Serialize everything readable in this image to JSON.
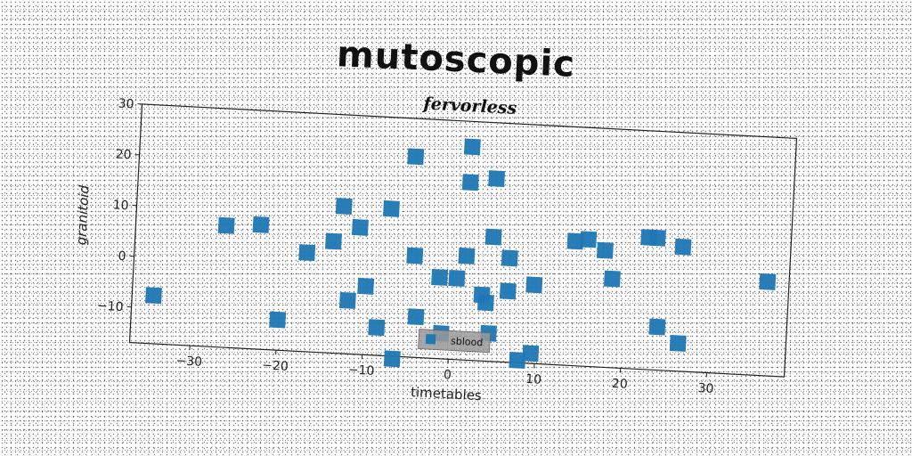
{
  "figure": {
    "suptitle": "mutoscopic"
  },
  "chart_data": {
    "type": "scatter",
    "title": "fervorless",
    "xlabel": "timetables",
    "ylabel": "granitoid",
    "xlim": [
      -37,
      39
    ],
    "ylim": [
      -17,
      30
    ],
    "xticks": [
      -30,
      -20,
      -10,
      0,
      10,
      20,
      30
    ],
    "yticks": [
      -10,
      0,
      10,
      20,
      30
    ],
    "grid": false,
    "legend_position": "lower center",
    "marker": "square",
    "series": [
      {
        "name": "sblood",
        "color": "#1f77b4",
        "points": [
          [
            -34.5,
            -7.5
          ],
          [
            -26.5,
            7.0
          ],
          [
            -22.5,
            7.5
          ],
          [
            -20.0,
            -11.0
          ],
          [
            -17.0,
            2.5
          ],
          [
            -14.0,
            5.0
          ],
          [
            -13.0,
            12.0
          ],
          [
            -12.0,
            -6.5
          ],
          [
            -11.0,
            8.0
          ],
          [
            -10.0,
            -3.5
          ],
          [
            -8.5,
            -11.5
          ],
          [
            -7.5,
            12.0
          ],
          [
            -6.5,
            -17.5
          ],
          [
            -5.0,
            22.5
          ],
          [
            -4.5,
            3.0
          ],
          [
            -4.0,
            -9.0
          ],
          [
            -1.5,
            -1.0
          ],
          [
            -1.0,
            -12.0
          ],
          [
            0.5,
            -1.0
          ],
          [
            1.5,
            25.0
          ],
          [
            1.5,
            3.5
          ],
          [
            1.5,
            18.0
          ],
          [
            3.5,
            -4.0
          ],
          [
            4.0,
            -5.5
          ],
          [
            4.5,
            19.0
          ],
          [
            4.5,
            7.5
          ],
          [
            4.5,
            -11.5
          ],
          [
            6.5,
            3.5
          ],
          [
            6.5,
            -3.0
          ],
          [
            8.0,
            -16.5
          ],
          [
            9.5,
            -15.0
          ],
          [
            9.5,
            -1.5
          ],
          [
            14.0,
            7.5
          ],
          [
            15.5,
            8.0
          ],
          [
            17.5,
            6.0
          ],
          [
            18.5,
            0.5
          ],
          [
            22.5,
            9.0
          ],
          [
            23.5,
            9.0
          ],
          [
            24.0,
            -8.5
          ],
          [
            26.5,
            7.5
          ],
          [
            26.5,
            -11.5
          ],
          [
            36.5,
            1.5
          ]
        ]
      }
    ]
  }
}
